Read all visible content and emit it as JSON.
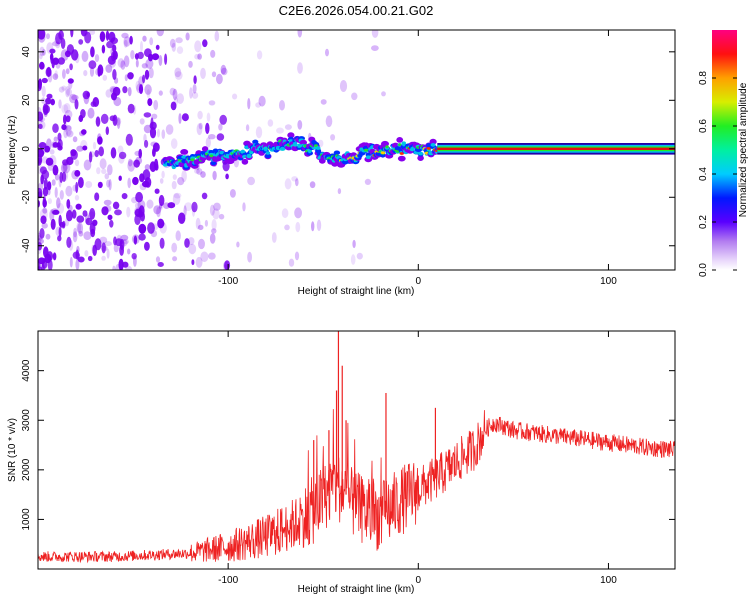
{
  "title": "C2E6.2026.054.00.21.G02",
  "colors": {
    "snr_line": "#ee2222",
    "ridge": "#dd2222",
    "blob": "#7700ee"
  },
  "chart_data": [
    {
      "type": "heatmap",
      "xlabel": "Height of straight line (km)",
      "ylabel": "Frequency (Hz)",
      "xlim": [
        -200,
        135
      ],
      "ylim": [
        -50,
        49
      ],
      "xticks": [
        -100,
        0,
        100
      ],
      "yticks": [
        -40,
        -20,
        0,
        20,
        40
      ],
      "grid": false,
      "colorbar": {
        "label": "Normalized spectral amplitude",
        "range": [
          0,
          1
        ],
        "ticks": [
          "0.0",
          "0.2",
          "0.4",
          "0.6",
          "0.8"
        ],
        "tick_values": [
          0,
          0.2,
          0.4,
          0.6,
          0.8
        ],
        "colormap": "rainbow (purple-blue-cyan-green-yellow-orange-red-magenta)"
      },
      "ridge_line": {
        "x": [
          -133,
          -120,
          -105,
          -90,
          -75,
          -62,
          -50,
          -40,
          -30,
          -20,
          -10,
          0,
          10,
          135
        ],
        "y": [
          -6,
          -5,
          -3,
          -1,
          1,
          2,
          -2,
          -3,
          -2,
          -1,
          0,
          0,
          0,
          0
        ]
      }
    },
    {
      "type": "line",
      "xlabel": "Height of straight line (km)",
      "ylabel": "SNR (10 * v/v)",
      "xlim": [
        -200,
        135
      ],
      "ylim": [
        0,
        4800
      ],
      "xticks": [
        -100,
        0,
        100
      ],
      "yticks": [
        1000,
        2000,
        3000,
        4000
      ],
      "grid": false,
      "series": [
        {
          "name": "SNR",
          "envelope": {
            "x": [
              -200,
              -160,
              -120,
              -100,
              -80,
              -60,
              -50,
              -45,
              -40,
              -35,
              -30,
              -25,
              -20,
              -10,
              0,
              10,
              20,
              30,
              35,
              40,
              50,
              60,
              70,
              80,
              90,
              100,
              110,
              120,
              135
            ],
            "y": [
              250,
              250,
              320,
              450,
              650,
              1000,
              1400,
              1700,
              1600,
              1350,
              1200,
              1100,
              1050,
              1350,
              1600,
              1850,
              2150,
              2450,
              2800,
              2950,
              2800,
              2750,
              2700,
              2650,
              2600,
              2550,
              2500,
              2450,
              2400
            ]
          },
          "spikes": [
            {
              "x": -42,
              "y": 4800
            },
            {
              "x": -40,
              "y": 4100
            },
            {
              "x": -43,
              "y": 3600
            },
            {
              "x": -17,
              "y": 3550
            },
            {
              "x": 9,
              "y": 3250
            },
            {
              "x": -38,
              "y": 3000
            },
            {
              "x": -55,
              "y": 2600
            },
            {
              "x": -47,
              "y": 2800
            }
          ]
        }
      ]
    }
  ]
}
